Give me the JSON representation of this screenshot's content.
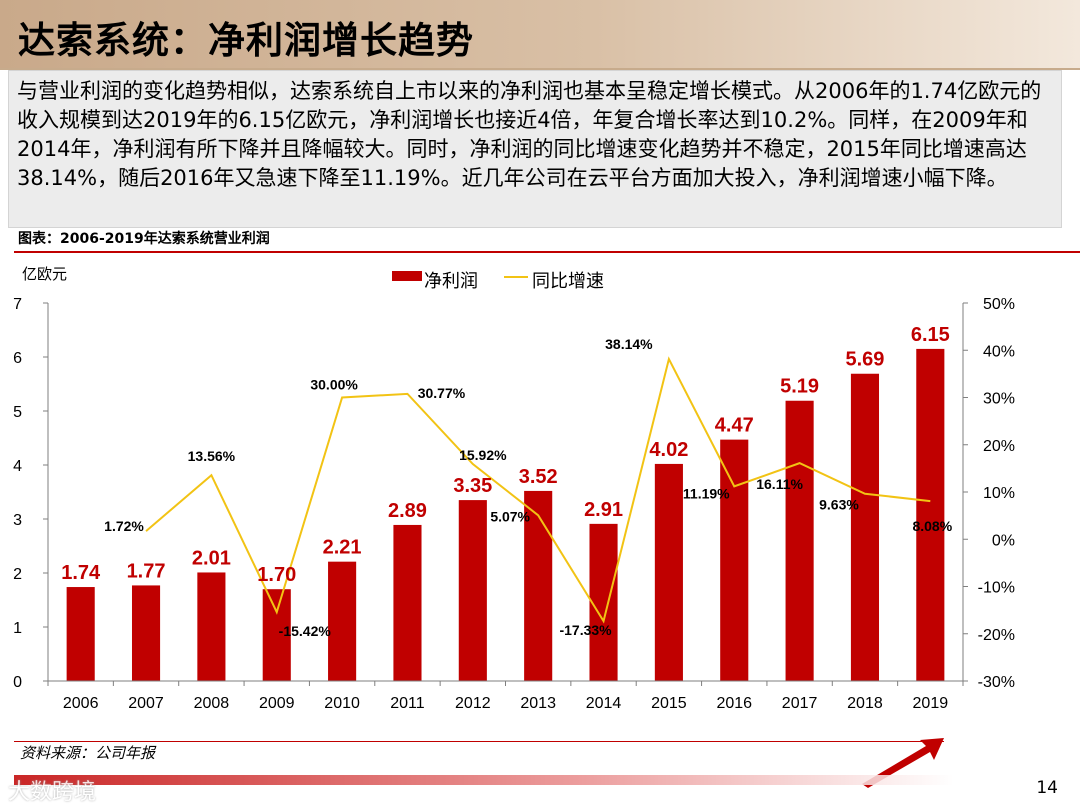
{
  "header": {
    "title": "达索系统：净利润增长趋势"
  },
  "description": "与营业利润的变化趋势相似，达索系统自上市以来的净利润也基本呈稳定增长模式。从2006年的1.74亿欧元的收入规模到达2019年的6.15亿欧元，净利润增长也接近4倍，年复合增长率达到10.2%。同样，在2009年和2014年，净利润有所下降并且降幅较大。同时，净利润的同比增速变化趋势并不稳定，2015年同比增速高达38.14%，随后2016年又急速下降至11.19%。近几年公司在云平台方面加大投入，净利润增速小幅下降。",
  "figure_caption": "图表：2006-2019年达索系统营业利润",
  "source": "资料来源：公司年报",
  "page_number": "14",
  "watermark": "大数跨境",
  "colors": {
    "bar": "#c00000",
    "line": "#f2c314",
    "title_bg": "#d3b79b"
  },
  "chart_data": {
    "type": "bar",
    "title": "",
    "y_unit_label": "亿欧元",
    "categories": [
      "2006",
      "2007",
      "2008",
      "2009",
      "2010",
      "2011",
      "2012",
      "2013",
      "2014",
      "2015",
      "2016",
      "2017",
      "2018",
      "2019"
    ],
    "series": [
      {
        "name": "净利润",
        "type": "bar",
        "axis": "left",
        "values": [
          1.74,
          1.77,
          2.01,
          1.7,
          2.21,
          2.89,
          3.35,
          3.52,
          2.91,
          4.02,
          4.47,
          5.19,
          5.69,
          6.15
        ],
        "labels": [
          "1.74",
          "1.77",
          "2.01",
          "1.70",
          "2.21",
          "2.89",
          "3.35",
          "3.52",
          "2.91",
          "4.02",
          "4.47",
          "5.19",
          "5.69",
          "6.15"
        ]
      },
      {
        "name": "同比增速",
        "type": "line",
        "axis": "right",
        "values": [
          null,
          1.72,
          13.56,
          -15.42,
          30.0,
          30.77,
          15.92,
          5.07,
          -17.33,
          38.14,
          11.19,
          16.11,
          9.63,
          8.08
        ],
        "labels": [
          "",
          "1.72%",
          "13.56%",
          "-15.42%",
          "30.00%",
          "30.77%",
          "15.92%",
          "5.07%",
          "-17.33%",
          "38.14%",
          "11.19%",
          "16.11%",
          "9.63%",
          "8.08%"
        ]
      }
    ],
    "ylim_left": [
      0,
      7
    ],
    "yticks_left": [
      "0",
      "1",
      "2",
      "3",
      "4",
      "5",
      "6",
      "7"
    ],
    "ylim_right": [
      -30,
      50
    ],
    "yticks_right": [
      "-30%",
      "-20%",
      "-10%",
      "0%",
      "10%",
      "20%",
      "30%",
      "40%",
      "50%"
    ],
    "legend_position": "top-center"
  }
}
